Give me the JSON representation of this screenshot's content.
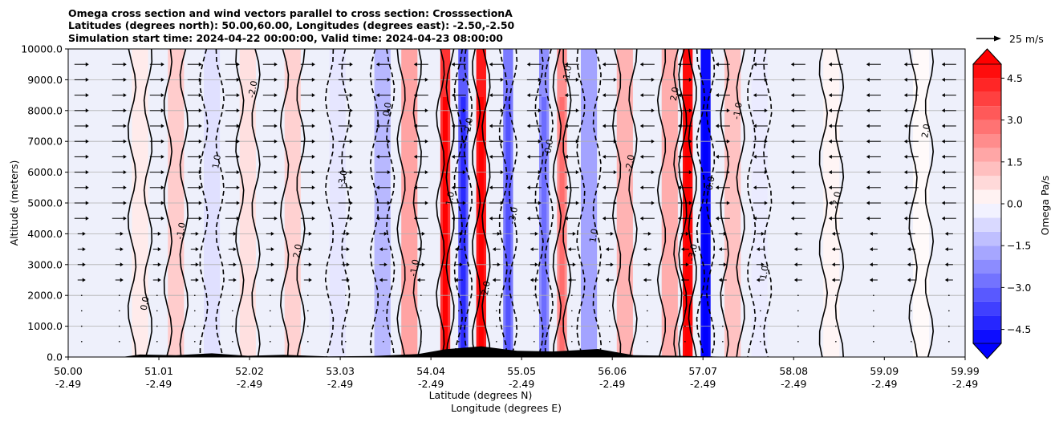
{
  "chart_data": {
    "type": "heatmap",
    "title": [
      "Omega cross section and wind vectors parallel to cross section: CrosssectionA",
      "Latitudes (degrees north): 50.00,60.00, Longitudes (degrees east): -2.50,-2.50",
      "Simulation start time: 2024-04-22 00:00:00, Valid time: 2024-04-23 08:00:00"
    ],
    "ylabel": "Altitude (meters)",
    "xlabel": [
      "Latitude (degrees N)",
      "Longitude (degrees E)"
    ],
    "ylim": [
      0,
      10000
    ],
    "xlim": [
      50.0,
      59.99
    ],
    "yticks": [
      "0.0",
      "1000.0",
      "2000.0",
      "3000.0",
      "4000.0",
      "5000.0",
      "6000.0",
      "7000.0",
      "8000.0",
      "9000.0",
      "10000.0"
    ],
    "xticks_lat": [
      "50.00",
      "51.01",
      "52.02",
      "53.03",
      "54.04",
      "55.05",
      "56.06",
      "57.07",
      "58.08",
      "59.09",
      "59.99"
    ],
    "xticks_lon": [
      "-2.49",
      "-2.49",
      "-2.49",
      "-2.49",
      "-2.49",
      "-2.49",
      "-2.49",
      "-2.49",
      "-2.49",
      "-2.49",
      "-2.49"
    ],
    "colorbar": {
      "label": "Omega Pa/s",
      "range": [
        -5.0,
        5.0
      ],
      "ticks": [
        "4.5",
        "3.0",
        "1.5",
        "0.0",
        "−1.5",
        "−3.0",
        "−4.5"
      ],
      "colors": {
        "max": "#ff0000",
        "min": "#0000ff",
        "mid": "#ffffff"
      }
    },
    "quiver_key": "25 m/s",
    "contour_labels": [
      "0.0",
      "-1.0",
      "1.0",
      "-2.0",
      "2.0",
      "-3.0"
    ],
    "omega_bands": [
      {
        "lat": 50.8,
        "omega": 0.4
      },
      {
        "lat": 51.2,
        "omega": 1.0
      },
      {
        "lat": 51.6,
        "omega": -0.6
      },
      {
        "lat": 52.0,
        "omega": 0.6
      },
      {
        "lat": 52.5,
        "omega": 0.9
      },
      {
        "lat": 53.0,
        "omega": -0.5
      },
      {
        "lat": 53.5,
        "omega": -1.4
      },
      {
        "lat": 53.8,
        "omega": 1.8
      },
      {
        "lat": 54.2,
        "omega": 4.0
      },
      {
        "lat": 54.4,
        "omega": -3.2
      },
      {
        "lat": 54.6,
        "omega": 4.5
      },
      {
        "lat": 54.9,
        "omega": -2.6
      },
      {
        "lat": 55.3,
        "omega": -2.2
      },
      {
        "lat": 55.5,
        "omega": 2.2
      },
      {
        "lat": 55.8,
        "omega": -1.8
      },
      {
        "lat": 56.2,
        "omega": 1.5
      },
      {
        "lat": 56.7,
        "omega": 1.6
      },
      {
        "lat": 56.9,
        "omega": 4.8
      },
      {
        "lat": 57.1,
        "omega": -4.8
      },
      {
        "lat": 57.4,
        "omega": 1.2
      },
      {
        "lat": 57.7,
        "omega": -0.4
      },
      {
        "lat": 58.5,
        "omega": 0.2
      },
      {
        "lat": 59.5,
        "omega": 0.1
      }
    ],
    "terrain": [
      {
        "lat": 50.0,
        "alt": 0
      },
      {
        "lat": 50.6,
        "alt": 0
      },
      {
        "lat": 50.8,
        "alt": 80
      },
      {
        "lat": 51.2,
        "alt": 60
      },
      {
        "lat": 51.6,
        "alt": 120
      },
      {
        "lat": 52.0,
        "alt": 40
      },
      {
        "lat": 52.4,
        "alt": 70
      },
      {
        "lat": 52.9,
        "alt": 20
      },
      {
        "lat": 53.4,
        "alt": 30
      },
      {
        "lat": 53.9,
        "alt": 100
      },
      {
        "lat": 54.2,
        "alt": 250
      },
      {
        "lat": 54.6,
        "alt": 350
      },
      {
        "lat": 55.0,
        "alt": 200
      },
      {
        "lat": 55.4,
        "alt": 180
      },
      {
        "lat": 55.9,
        "alt": 260
      },
      {
        "lat": 56.3,
        "alt": 60
      },
      {
        "lat": 56.8,
        "alt": 40
      },
      {
        "lat": 57.1,
        "alt": 20
      },
      {
        "lat": 57.6,
        "alt": 0
      },
      {
        "lat": 59.99,
        "alt": 0
      }
    ],
    "wind_levels_m": [
      500,
      1000,
      1500,
      2000,
      2500,
      3000,
      3500,
      4000,
      4500,
      5000,
      5500,
      6000,
      6500,
      7000,
      7500,
      8000,
      8500,
      9000,
      9500
    ]
  }
}
